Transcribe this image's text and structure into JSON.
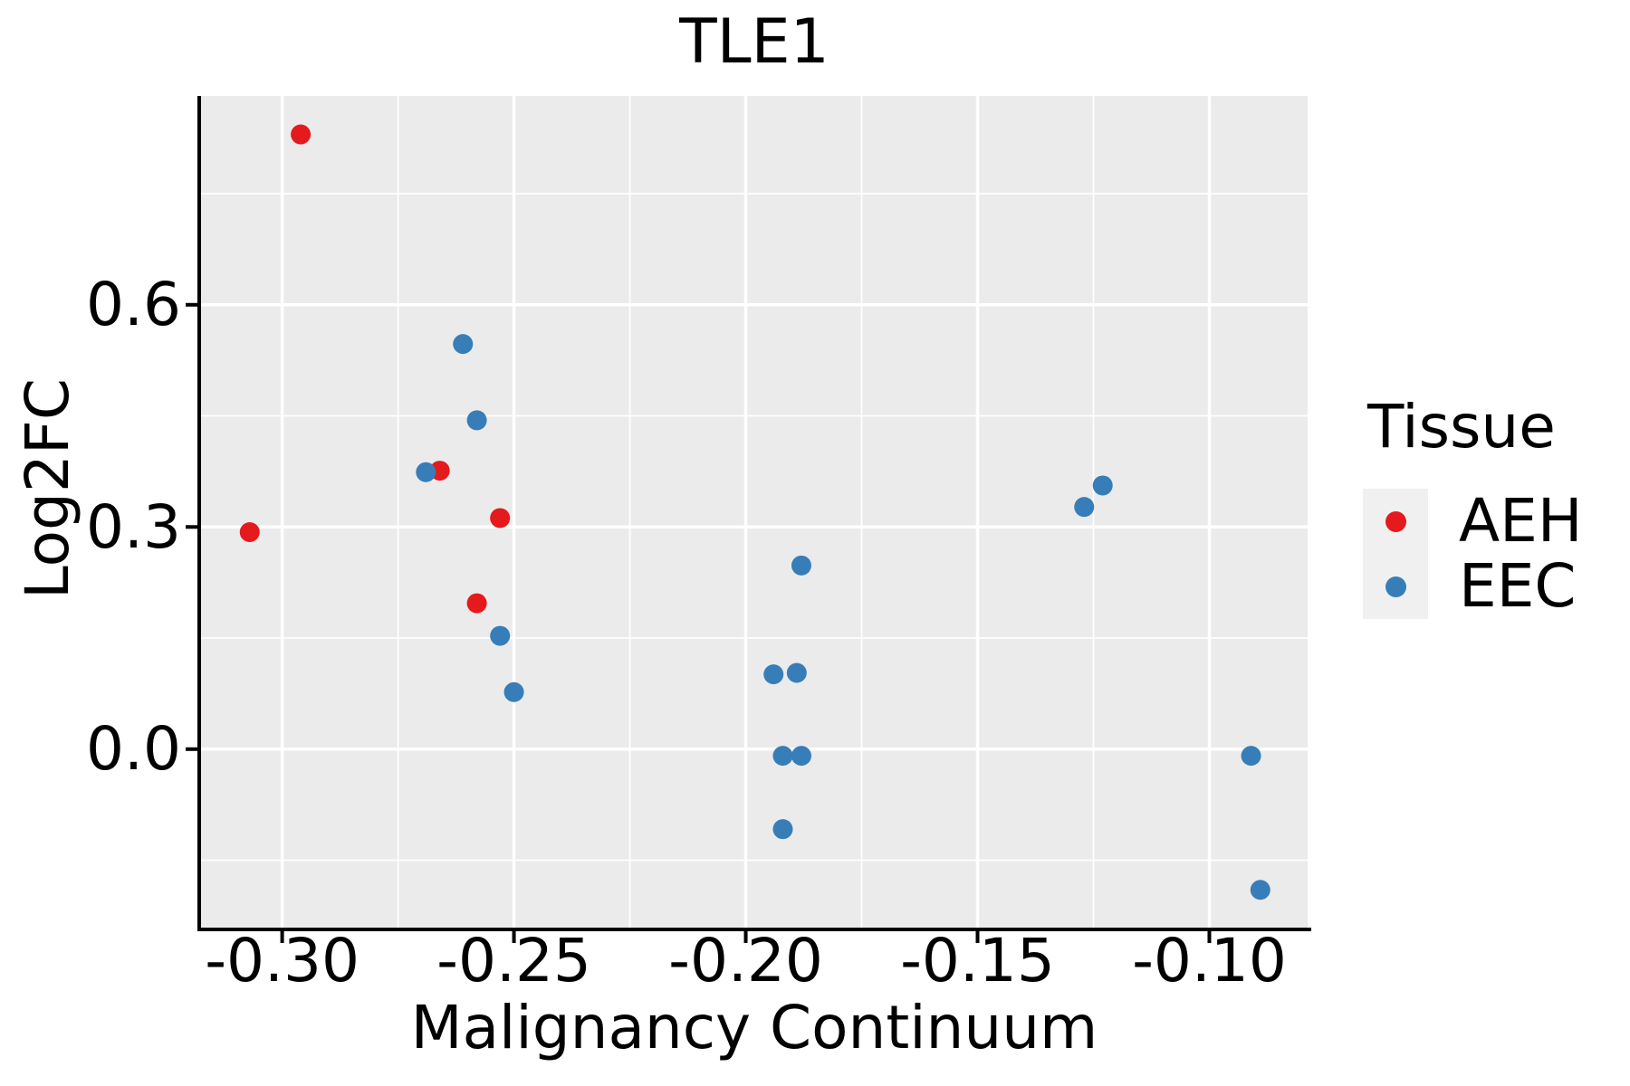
{
  "chart_data": {
    "type": "scatter",
    "title": "TLE1",
    "xlabel": "Malignancy Continuum",
    "ylabel": "Log2FC",
    "grid": true,
    "panel_bg": "#EBEBEB",
    "grid_color": "#FFFFFF",
    "axis_color": "#000000",
    "text_color": "#000000",
    "legend_key_bg": "#F0F0F0",
    "point_radius": 11,
    "legend": {
      "title": "Tissue",
      "position": "right",
      "items": [
        {
          "label": "AEH",
          "color": "#E41A1C"
        },
        {
          "label": "EEC",
          "color": "#377EB8"
        }
      ]
    },
    "x_axis": {
      "range": [
        -0.3175,
        -0.0788
      ],
      "ticks": [
        -0.3,
        -0.25,
        -0.2,
        -0.15,
        -0.1
      ],
      "tick_labels": [
        "-0.30",
        "-0.25",
        "-0.20",
        "-0.15",
        "-0.10"
      ],
      "minor_ticks": [
        -0.275,
        -0.225,
        -0.175,
        -0.125
      ]
    },
    "y_axis": {
      "range": [
        -0.241,
        0.882
      ],
      "ticks": [
        0.0,
        0.3,
        0.6
      ],
      "tick_labels": [
        "0.0",
        "0.3",
        "0.6"
      ],
      "minor_ticks": [
        -0.15,
        0.15,
        0.45,
        0.75
      ]
    },
    "series": [
      {
        "name": "AEH",
        "color": "#E41A1C",
        "points": [
          [
            -0.307,
            0.293
          ],
          [
            -0.296,
            0.83
          ],
          [
            -0.266,
            0.376
          ],
          [
            -0.258,
            0.197
          ],
          [
            -0.253,
            0.312
          ]
        ]
      },
      {
        "name": "EEC",
        "color": "#377EB8",
        "points": [
          [
            -0.269,
            0.374
          ],
          [
            -0.261,
            0.547
          ],
          [
            -0.258,
            0.444
          ],
          [
            -0.253,
            0.153
          ],
          [
            -0.25,
            0.077
          ],
          [
            -0.194,
            0.101
          ],
          [
            -0.192,
            -0.009
          ],
          [
            -0.192,
            -0.108
          ],
          [
            -0.189,
            0.103
          ],
          [
            -0.188,
            0.248
          ],
          [
            -0.188,
            -0.009
          ],
          [
            -0.127,
            0.327
          ],
          [
            -0.123,
            0.356
          ],
          [
            -0.091,
            -0.009
          ],
          [
            -0.089,
            -0.19
          ]
        ]
      }
    ]
  }
}
